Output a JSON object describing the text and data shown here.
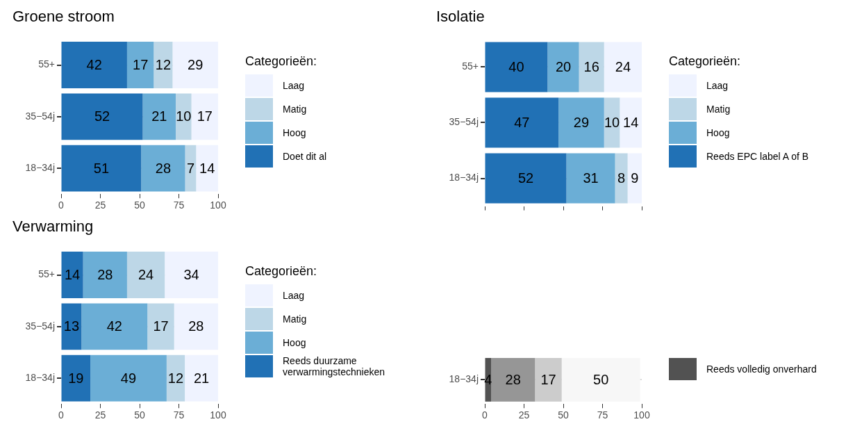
{
  "chart_data": [
    {
      "type": "bar",
      "orientation": "horizontal",
      "stacked": true,
      "title": "Groene stroom",
      "legend_title": "Categorieën:",
      "legend": "right",
      "grid": "y",
      "data_labels": true,
      "categories": [
        "55+",
        "35−54j",
        "18−34j"
      ],
      "xlim": [
        0,
        100
      ],
      "xticks": [
        0,
        25,
        50,
        75,
        100
      ],
      "series": [
        {
          "name": "Doet dit al",
          "color": "#2171b5",
          "values": [
            42,
            52,
            51
          ]
        },
        {
          "name": "Hoog",
          "color": "#6baed6",
          "values": [
            17,
            21,
            28
          ]
        },
        {
          "name": "Matig",
          "color": "#bdd7e7",
          "values": [
            12,
            10,
            7
          ]
        },
        {
          "name": "Laag",
          "color": "#eff3ff",
          "values": [
            29,
            17,
            14
          ]
        }
      ]
    },
    {
      "type": "bar",
      "orientation": "horizontal",
      "stacked": true,
      "title": "Isolatie",
      "legend_title": "Categorieën:",
      "legend": "right",
      "grid": "y",
      "data_labels": true,
      "tick_labels": "y",
      "categories": [
        "55+",
        "35−54j",
        "18−34j"
      ],
      "xlim": [
        0,
        100
      ],
      "xticks": [
        0,
        25,
        50,
        75,
        100
      ],
      "series": [
        {
          "name": "Reeds EPC label A of B",
          "color": "#2171b5",
          "values": [
            40,
            47,
            52
          ]
        },
        {
          "name": "Hoog",
          "color": "#6baed6",
          "values": [
            20,
            29,
            31
          ]
        },
        {
          "name": "Matig",
          "color": "#bdd7e7",
          "values": [
            16,
            10,
            8
          ]
        },
        {
          "name": "Laag",
          "color": "#eff3ff",
          "values": [
            24,
            14,
            9
          ]
        }
      ]
    },
    {
      "type": "bar",
      "orientation": "horizontal",
      "stacked": true,
      "title": "Verwarming",
      "legend_title": "Categorieën:",
      "legend": "right",
      "grid": "y",
      "categories": [
        "55+",
        "35−54j",
        "18−34j"
      ],
      "xlim": [
        0,
        100
      ],
      "xticks": [
        0,
        25,
        50,
        75,
        100
      ],
      "series": [
        {
          "name": "Reeds duurzame verwarmingstechnieken",
          "color": "#2171b5",
          "values": [
            14,
            13,
            18.6
          ],
          "value_labels": [
            "14",
            "13",
            "19"
          ]
        },
        {
          "name": "Hoog",
          "color": "#6baed6",
          "values": [
            28,
            42,
            48.6
          ],
          "value_labels": [
            "28",
            "42",
            "49"
          ]
        },
        {
          "name": "Matig",
          "color": "#bdd7e7",
          "values": [
            24,
            17,
            11.6
          ],
          "value_labels": [
            "24",
            "17",
            "12"
          ]
        },
        {
          "name": "Laag",
          "color": "#eff3ff",
          "values": [
            34,
            28,
            21.2
          ],
          "value_labels": [
            "34",
            "28",
            "21"
          ]
        }
      ]
    },
    {
      "type": "bar",
      "orientation": "horizontal",
      "stacked": true,
      "legend": "right",
      "grid": "y",
      "data_labels": true,
      "categories": [
        "18−34j"
      ],
      "xlim": [
        0,
        100
      ],
      "xticks": [
        0,
        25,
        50,
        75,
        100
      ],
      "series": [
        {
          "name": "Reeds volledig onverhard",
          "color": "#525252",
          "values": [
            4
          ]
        },
        {
          "color": "#969696",
          "values": [
            28
          ]
        },
        {
          "color": "#cccccc",
          "values": [
            17
          ]
        },
        {
          "color": "#f7f7f7",
          "values": [
            50
          ]
        }
      ]
    }
  ]
}
